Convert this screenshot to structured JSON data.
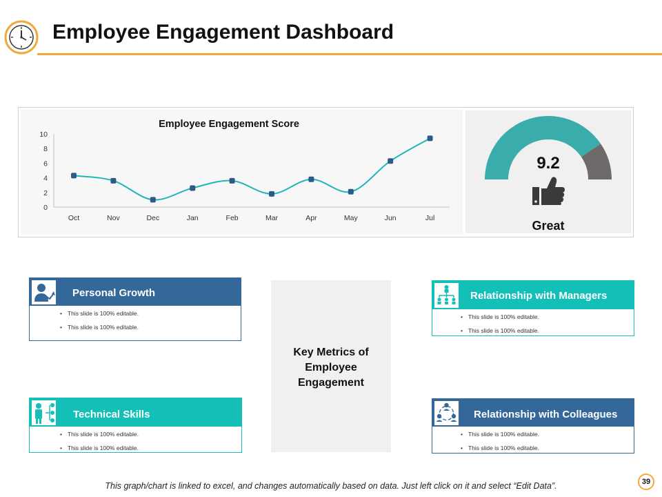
{
  "header": {
    "title": "Employee Engagement Dashboard",
    "icon": "clock-icon",
    "accent_color": "#f2a93b"
  },
  "chart_data": {
    "type": "line",
    "title": "Employee Engagement Score",
    "categories": [
      "Oct",
      "Nov",
      "Dec",
      "Jan",
      "Feb",
      "Mar",
      "Apr",
      "May",
      "Jun",
      "Jul"
    ],
    "values": [
      4.3,
      3.6,
      1.0,
      2.6,
      3.6,
      1.8,
      3.8,
      2.1,
      6.3,
      9.4
    ],
    "yticks": [
      0,
      2,
      4,
      6,
      8,
      10
    ],
    "ylim": [
      0,
      10
    ],
    "xlabel": "",
    "ylabel": "",
    "line_color": "#1fb5b9",
    "marker_color": "#2e5b86",
    "grid": false
  },
  "gauge": {
    "value": "9.2",
    "label": "Great",
    "fill_fraction": 0.81,
    "fill_color": "#3aacac",
    "rest_color": "#6f6a6a",
    "icon": "thumbs-up-icon"
  },
  "key_metrics_title": "Key Metrics of Employee Engagement",
  "cards": {
    "personal_growth": {
      "title": "Personal Growth",
      "icon": "growth-person-icon",
      "color": "#34679a",
      "bullets": [
        "This slide is 100% editable.",
        "This slide is 100% editable."
      ]
    },
    "technical_skills": {
      "title": "Technical Skills",
      "icon": "skills-network-icon",
      "color": "#14bfb8",
      "bullets": [
        "This slide is 100% editable.",
        "This slide is 100% editable."
      ]
    },
    "relationship_managers": {
      "title": "Relationship with Managers",
      "icon": "org-chart-icon",
      "color": "#14bfb8",
      "bullets": [
        "This slide is 100% editable.",
        "This slide is 100% editable."
      ]
    },
    "relationship_colleagues": {
      "title": "Relationship with Colleagues",
      "icon": "team-cycle-icon",
      "color": "#34679a",
      "bullets": [
        "This slide is 100% editable.",
        "This slide is 100% editable."
      ]
    }
  },
  "footer": {
    "note": "This graph/chart is linked to excel, and changes automatically based on data.  Just left click on it and select “Edit Data”.",
    "page_number": "39"
  }
}
